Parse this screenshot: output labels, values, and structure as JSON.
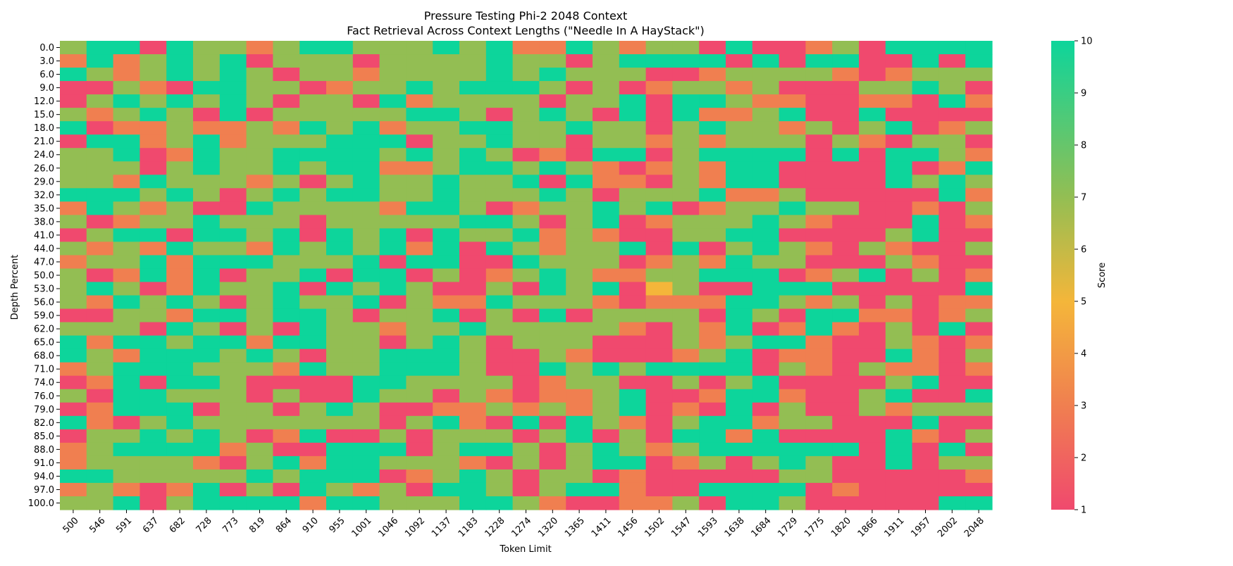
{
  "chart_data": {
    "type": "heatmap",
    "title": "Pressure Testing Phi-2 2048 Context",
    "subtitle": "Fact Retrieval Across Context Lengths (\"Needle In A HayStack\")",
    "xlabel": "Token Limit",
    "ylabel": "Depth Percent",
    "colorbar_label": "Score",
    "x": [
      500,
      546,
      591,
      637,
      682,
      728,
      773,
      819,
      864,
      910,
      955,
      1001,
      1046,
      1092,
      1137,
      1183,
      1228,
      1274,
      1320,
      1365,
      1411,
      1456,
      1502,
      1547,
      1593,
      1638,
      1684,
      1729,
      1775,
      1820,
      1866,
      1911,
      1957,
      2002,
      2048
    ],
    "y": [
      "0.0",
      "3.0",
      "6.0",
      "9.0",
      "12.0",
      "15.0",
      "18.0",
      "21.0",
      "24.0",
      "26.0",
      "29.0",
      "32.0",
      "35.0",
      "38.0",
      "41.0",
      "44.0",
      "47.0",
      "50.0",
      "53.0",
      "56.0",
      "59.0",
      "62.0",
      "65.0",
      "68.0",
      "71.0",
      "74.0",
      "76.0",
      "79.0",
      "82.0",
      "85.0",
      "88.0",
      "91.0",
      "94.0",
      "97.0",
      "100.0"
    ],
    "colorbar_ticks": [
      1,
      2,
      3,
      4,
      5,
      6,
      7,
      8,
      9,
      10
    ],
    "vmin": 1,
    "vmax": 10,
    "colors": {
      "low": "#f0496e",
      "score_3": "#f07f50",
      "score_5": "#f4b63a",
      "score_7": "#93be53",
      "high": "#0dd59b"
    },
    "values": [
      [
        7,
        10,
        10,
        1,
        10,
        7,
        7,
        3,
        7,
        10,
        10,
        7,
        7,
        7,
        10,
        7,
        10,
        3,
        3,
        10,
        7,
        3,
        7,
        7,
        1,
        10,
        1,
        1,
        3,
        7,
        1,
        10,
        10,
        10,
        10
      ],
      [
        3,
        10,
        3,
        7,
        10,
        7,
        10,
        1,
        7,
        7,
        7,
        1,
        7,
        7,
        7,
        7,
        10,
        7,
        7,
        1,
        7,
        10,
        10,
        10,
        10,
        1,
        10,
        1,
        10,
        10,
        1,
        1,
        10,
        1,
        10
      ],
      [
        10,
        7,
        3,
        7,
        10,
        7,
        10,
        7,
        1,
        7,
        7,
        3,
        7,
        7,
        7,
        7,
        10,
        7,
        10,
        7,
        7,
        7,
        1,
        1,
        3,
        7,
        7,
        7,
        7,
        3,
        1,
        3,
        7,
        7,
        7
      ],
      [
        1,
        1,
        7,
        3,
        1,
        10,
        10,
        7,
        7,
        1,
        3,
        7,
        7,
        10,
        7,
        10,
        10,
        10,
        7,
        1,
        7,
        1,
        3,
        7,
        7,
        3,
        7,
        1,
        1,
        1,
        7,
        7,
        10,
        7,
        1
      ],
      [
        1,
        7,
        10,
        7,
        10,
        7,
        10,
        7,
        1,
        7,
        7,
        1,
        10,
        3,
        7,
        7,
        7,
        7,
        1,
        7,
        7,
        10,
        1,
        10,
        10,
        7,
        3,
        3,
        1,
        1,
        3,
        3,
        1,
        10,
        3
      ],
      [
        7,
        3,
        7,
        10,
        7,
        1,
        10,
        1,
        7,
        7,
        7,
        7,
        7,
        10,
        10,
        7,
        1,
        7,
        10,
        7,
        1,
        10,
        1,
        10,
        3,
        3,
        7,
        10,
        1,
        1,
        10,
        1,
        1,
        1,
        1
      ],
      [
        10,
        1,
        3,
        3,
        7,
        3,
        3,
        7,
        3,
        10,
        7,
        10,
        3,
        7,
        7,
        10,
        10,
        7,
        7,
        10,
        7,
        7,
        1,
        7,
        10,
        7,
        7,
        3,
        7,
        1,
        7,
        10,
        1,
        3,
        7
      ],
      [
        1,
        10,
        10,
        3,
        7,
        10,
        3,
        7,
        7,
        7,
        10,
        10,
        10,
        1,
        7,
        7,
        10,
        7,
        7,
        1,
        7,
        7,
        3,
        7,
        3,
        7,
        7,
        7,
        1,
        7,
        3,
        1,
        7,
        7,
        1
      ],
      [
        7,
        7,
        10,
        1,
        3,
        10,
        7,
        7,
        10,
        10,
        10,
        10,
        7,
        10,
        7,
        10,
        7,
        1,
        3,
        1,
        10,
        10,
        1,
        7,
        10,
        10,
        10,
        10,
        1,
        10,
        1,
        10,
        10,
        7,
        3
      ],
      [
        7,
        7,
        7,
        1,
        7,
        10,
        7,
        7,
        10,
        7,
        10,
        10,
        3,
        3,
        7,
        10,
        10,
        7,
        10,
        7,
        3,
        1,
        3,
        7,
        3,
        10,
        10,
        1,
        1,
        1,
        1,
        10,
        1,
        3,
        10
      ],
      [
        7,
        7,
        3,
        10,
        7,
        7,
        7,
        3,
        7,
        1,
        7,
        10,
        7,
        7,
        10,
        7,
        7,
        10,
        1,
        10,
        3,
        3,
        1,
        7,
        3,
        10,
        10,
        1,
        1,
        1,
        1,
        10,
        7,
        10,
        7
      ],
      [
        10,
        10,
        10,
        7,
        10,
        7,
        1,
        7,
        10,
        7,
        10,
        10,
        7,
        7,
        10,
        7,
        7,
        7,
        10,
        7,
        1,
        7,
        7,
        7,
        10,
        3,
        3,
        7,
        1,
        1,
        1,
        1,
        1,
        10,
        3
      ],
      [
        3,
        10,
        7,
        3,
        7,
        1,
        1,
        10,
        7,
        7,
        7,
        7,
        3,
        10,
        10,
        7,
        1,
        3,
        7,
        7,
        10,
        7,
        10,
        1,
        3,
        7,
        7,
        10,
        7,
        7,
        1,
        1,
        3,
        1,
        7
      ],
      [
        7,
        1,
        3,
        7,
        7,
        10,
        7,
        7,
        7,
        1,
        7,
        7,
        7,
        7,
        7,
        10,
        10,
        7,
        1,
        7,
        10,
        1,
        3,
        7,
        7,
        7,
        10,
        7,
        3,
        1,
        1,
        1,
        10,
        1,
        3
      ],
      [
        1,
        7,
        10,
        10,
        1,
        10,
        10,
        7,
        10,
        1,
        10,
        7,
        10,
        1,
        10,
        7,
        7,
        10,
        3,
        7,
        3,
        1,
        1,
        7,
        7,
        10,
        10,
        1,
        1,
        1,
        1,
        7,
        10,
        1,
        1
      ],
      [
        7,
        3,
        7,
        3,
        10,
        7,
        7,
        3,
        10,
        7,
        10,
        7,
        10,
        3,
        10,
        1,
        10,
        7,
        3,
        7,
        7,
        10,
        1,
        10,
        1,
        7,
        10,
        7,
        3,
        1,
        7,
        3,
        1,
        1,
        7
      ],
      [
        3,
        7,
        7,
        10,
        3,
        10,
        10,
        10,
        7,
        7,
        7,
        10,
        1,
        10,
        10,
        1,
        1,
        10,
        7,
        7,
        7,
        1,
        3,
        7,
        3,
        10,
        7,
        7,
        1,
        1,
        1,
        7,
        3,
        1,
        1
      ],
      [
        7,
        1,
        3,
        10,
        3,
        10,
        1,
        7,
        7,
        10,
        1,
        10,
        10,
        1,
        7,
        1,
        3,
        7,
        10,
        7,
        3,
        3,
        7,
        7,
        10,
        10,
        10,
        1,
        3,
        7,
        10,
        1,
        7,
        1,
        3
      ],
      [
        7,
        10,
        7,
        1,
        3,
        10,
        7,
        7,
        10,
        1,
        10,
        7,
        10,
        7,
        1,
        1,
        7,
        1,
        10,
        7,
        10,
        1,
        5,
        7,
        1,
        1,
        10,
        10,
        10,
        1,
        1,
        1,
        1,
        1,
        10
      ],
      [
        7,
        3,
        10,
        7,
        10,
        7,
        1,
        7,
        10,
        7,
        7,
        10,
        1,
        7,
        3,
        3,
        10,
        7,
        7,
        7,
        3,
        1,
        3,
        3,
        3,
        10,
        10,
        7,
        3,
        7,
        1,
        7,
        1,
        3,
        3
      ],
      [
        1,
        1,
        7,
        7,
        3,
        10,
        10,
        7,
        10,
        10,
        7,
        1,
        7,
        7,
        10,
        1,
        7,
        1,
        10,
        1,
        7,
        7,
        7,
        7,
        1,
        10,
        7,
        1,
        10,
        10,
        3,
        3,
        1,
        3,
        7
      ],
      [
        7,
        7,
        7,
        1,
        10,
        7,
        1,
        7,
        1,
        10,
        7,
        7,
        3,
        7,
        7,
        10,
        7,
        7,
        7,
        7,
        7,
        3,
        1,
        7,
        3,
        10,
        1,
        3,
        10,
        3,
        1,
        7,
        1,
        10,
        1
      ],
      [
        10,
        3,
        10,
        10,
        7,
        10,
        10,
        3,
        10,
        10,
        7,
        7,
        1,
        7,
        10,
        7,
        1,
        7,
        7,
        7,
        1,
        1,
        1,
        7,
        3,
        7,
        10,
        10,
        3,
        1,
        1,
        7,
        3,
        1,
        3
      ],
      [
        10,
        7,
        3,
        10,
        10,
        10,
        7,
        10,
        7,
        1,
        7,
        7,
        10,
        10,
        10,
        7,
        1,
        1,
        7,
        3,
        1,
        1,
        1,
        3,
        7,
        10,
        1,
        3,
        3,
        1,
        1,
        10,
        3,
        1,
        7
      ],
      [
        3,
        7,
        10,
        10,
        10,
        7,
        7,
        7,
        3,
        10,
        7,
        7,
        10,
        10,
        10,
        7,
        1,
        1,
        10,
        7,
        10,
        7,
        10,
        10,
        10,
        10,
        1,
        7,
        3,
        1,
        7,
        3,
        3,
        1,
        3
      ],
      [
        1,
        3,
        10,
        1,
        10,
        10,
        7,
        1,
        1,
        1,
        1,
        10,
        10,
        7,
        7,
        7,
        7,
        1,
        3,
        7,
        7,
        1,
        1,
        7,
        1,
        7,
        10,
        1,
        1,
        1,
        1,
        7,
        10,
        1,
        1
      ],
      [
        7,
        1,
        10,
        10,
        7,
        7,
        7,
        1,
        7,
        1,
        1,
        10,
        7,
        7,
        1,
        7,
        3,
        1,
        3,
        3,
        7,
        10,
        1,
        1,
        3,
        10,
        10,
        3,
        1,
        1,
        7,
        10,
        1,
        1,
        10
      ],
      [
        1,
        3,
        10,
        10,
        10,
        1,
        7,
        7,
        1,
        7,
        10,
        7,
        1,
        1,
        3,
        3,
        7,
        3,
        7,
        3,
        7,
        10,
        1,
        3,
        1,
        10,
        1,
        7,
        1,
        1,
        7,
        3,
        7,
        7,
        7
      ],
      [
        10,
        3,
        1,
        7,
        10,
        7,
        7,
        7,
        7,
        7,
        7,
        7,
        1,
        7,
        10,
        3,
        1,
        10,
        1,
        10,
        7,
        3,
        1,
        7,
        10,
        10,
        3,
        7,
        7,
        1,
        1,
        1,
        10,
        1,
        1
      ],
      [
        1,
        7,
        7,
        10,
        7,
        10,
        7,
        1,
        3,
        10,
        1,
        1,
        7,
        1,
        7,
        7,
        7,
        1,
        7,
        10,
        1,
        7,
        1,
        10,
        10,
        3,
        10,
        1,
        1,
        1,
        1,
        10,
        3,
        1,
        7
      ],
      [
        3,
        7,
        10,
        10,
        10,
        10,
        3,
        7,
        1,
        1,
        10,
        10,
        10,
        1,
        7,
        10,
        10,
        7,
        1,
        7,
        10,
        7,
        3,
        7,
        10,
        10,
        10,
        10,
        10,
        10,
        1,
        10,
        1,
        10,
        1
      ],
      [
        3,
        7,
        7,
        7,
        7,
        3,
        1,
        7,
        10,
        3,
        10,
        10,
        7,
        7,
        7,
        3,
        1,
        7,
        1,
        7,
        10,
        10,
        1,
        3,
        7,
        1,
        7,
        10,
        7,
        1,
        1,
        10,
        1,
        7,
        7
      ],
      [
        10,
        10,
        7,
        7,
        7,
        7,
        7,
        10,
        7,
        10,
        10,
        10,
        1,
        3,
        7,
        10,
        7,
        1,
        7,
        7,
        1,
        3,
        1,
        1,
        1,
        1,
        1,
        7,
        7,
        1,
        1,
        1,
        1,
        1,
        3
      ],
      [
        3,
        7,
        3,
        1,
        3,
        10,
        1,
        7,
        1,
        10,
        7,
        3,
        7,
        1,
        10,
        10,
        7,
        1,
        7,
        10,
        10,
        3,
        1,
        1,
        10,
        10,
        10,
        10,
        1,
        3,
        1,
        1,
        1,
        1,
        1
      ],
      [
        7,
        7,
        10,
        1,
        7,
        10,
        10,
        10,
        10,
        3,
        10,
        10,
        7,
        7,
        7,
        10,
        10,
        7,
        3,
        1,
        1,
        3,
        3,
        7,
        1,
        10,
        10,
        7,
        1,
        1,
        1,
        1,
        1,
        10,
        10
      ]
    ]
  }
}
